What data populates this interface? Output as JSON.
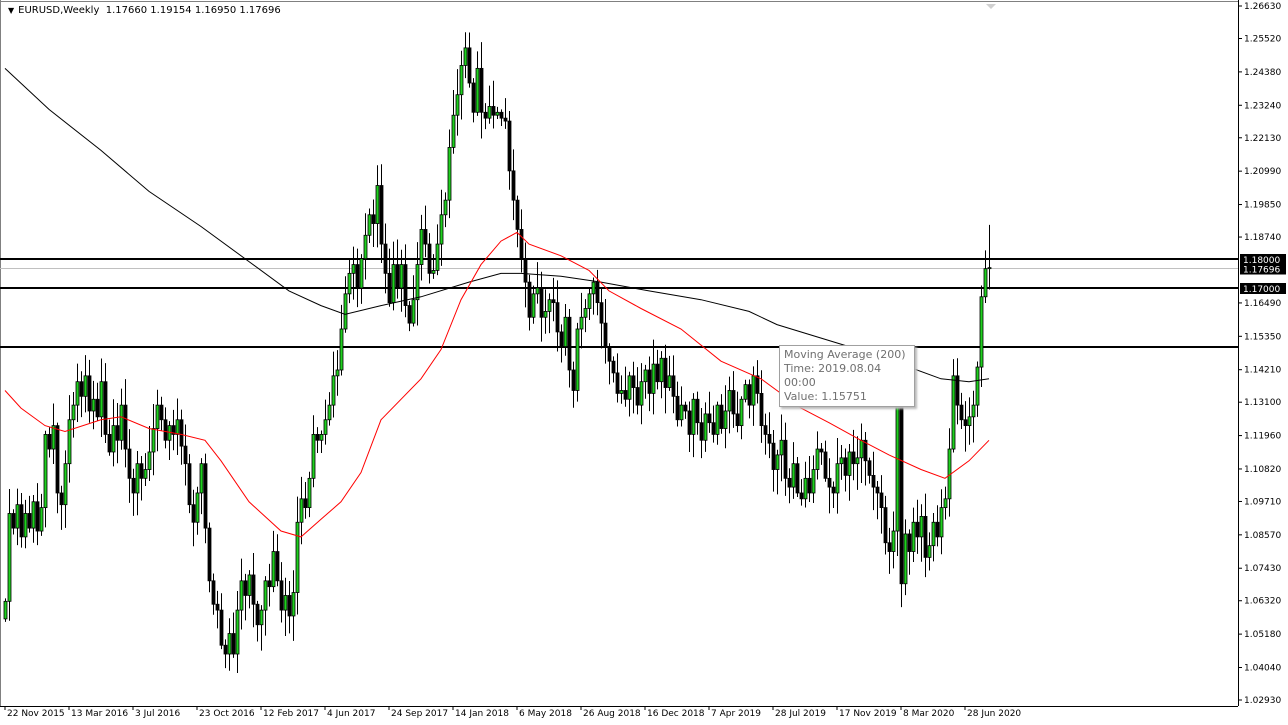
{
  "header": {
    "symbol": "EURUSD,Weekly",
    "open": "1.17660",
    "high": "1.19154",
    "low": "1.16950",
    "close": "1.17696"
  },
  "tooltip": {
    "title": "Moving Average (200)",
    "time": "Time: 2019.08.04 00:00",
    "value": "Value: 1.15751"
  },
  "colors": {
    "up_body": "#1fd01f",
    "down_body": "#000000",
    "ma200": "#000000",
    "ma_fast": "#ff0000",
    "level_line": "#000000",
    "bid_line": "#c0c0c0"
  },
  "chart_data": {
    "type": "candlestick",
    "title": "",
    "ylim": [
      1.0293,
      1.2663
    ],
    "y_ticks": [
      "1.26630",
      "1.25520",
      "1.24380",
      "1.23240",
      "1.22130",
      "1.20990",
      "1.19850",
      "1.18740",
      "1.16490",
      "1.15350",
      "1.14210",
      "1.13100",
      "1.11960",
      "1.10820",
      "1.09710",
      "1.08570",
      "1.07430",
      "1.06320",
      "1.05180",
      "1.04040",
      "1.02930"
    ],
    "x_ticks": [
      "22 Nov 2015",
      "13 Mar 2016",
      "3 Jul 2016",
      "23 Oct 2016",
      "12 Feb 2017",
      "4 Jun 2017",
      "24 Sep 2017",
      "14 Jan 2018",
      "6 May 2018",
      "26 Aug 2018",
      "16 Dec 2018",
      "7 Apr 2019",
      "28 Jul 2019",
      "17 Nov 2019",
      "8 Mar 2020",
      "28 Jun 2020"
    ],
    "horizontal_levels": [
      {
        "price": 1.18,
        "label": "1.18000"
      },
      {
        "price": 1.17,
        "label": "1.17000"
      },
      {
        "price": 1.15
      }
    ],
    "bid": {
      "price": 1.17696,
      "label": "1.17696"
    },
    "last_candle": {
      "open": 1.1766,
      "high": 1.19154,
      "low": 1.1695,
      "close": 1.17696
    },
    "closes": [
      1.063,
      1.093,
      1.088,
      1.096,
      1.085,
      1.093,
      1.088,
      1.097,
      1.087,
      1.095,
      1.12,
      1.115,
      1.123,
      1.1,
      1.096,
      1.11,
      1.125,
      1.13,
      1.138,
      1.133,
      1.14,
      1.128,
      1.132,
      1.126,
      1.138,
      1.12,
      1.114,
      1.123,
      1.118,
      1.13,
      1.115,
      1.105,
      1.1,
      1.11,
      1.105,
      1.108,
      1.114,
      1.122,
      1.13,
      1.125,
      1.118,
      1.123,
      1.12,
      1.125,
      1.116,
      1.11,
      1.096,
      1.09,
      1.1,
      1.11,
      1.088,
      1.07,
      1.062,
      1.06,
      1.048,
      1.045,
      1.052,
      1.045,
      1.06,
      1.07,
      1.065,
      1.072,
      1.062,
      1.055,
      1.06,
      1.07,
      1.068,
      1.08,
      1.07,
      1.06,
      1.065,
      1.058,
      1.066,
      1.09,
      1.098,
      1.095,
      1.105,
      1.12,
      1.118,
      1.12,
      1.125,
      1.13,
      1.14,
      1.142,
      1.156,
      1.168,
      1.175,
      1.178,
      1.17,
      1.18,
      1.188,
      1.195,
      1.192,
      1.205,
      1.185,
      1.175,
      1.165,
      1.178,
      1.17,
      1.178,
      1.164,
      1.158,
      1.166,
      1.178,
      1.19,
      1.185,
      1.175,
      1.176,
      1.185,
      1.195,
      1.2,
      1.218,
      1.229,
      1.236,
      1.246,
      1.252,
      1.24,
      1.23,
      1.245,
      1.23,
      1.228,
      1.232,
      1.229,
      1.23,
      1.228,
      1.227,
      1.21,
      1.2,
      1.19,
      1.18,
      1.172,
      1.16,
      1.168,
      1.17,
      1.16,
      1.162,
      1.166,
      1.165,
      1.155,
      1.15,
      1.16,
      1.142,
      1.135,
      1.156,
      1.16,
      1.163,
      1.168,
      1.172,
      1.165,
      1.158,
      1.15,
      1.145,
      1.141,
      1.134,
      1.135,
      1.132,
      1.14,
      1.136,
      1.13,
      1.138,
      1.142,
      1.134,
      1.144,
      1.138,
      1.146,
      1.136,
      1.14,
      1.133,
      1.125,
      1.13,
      1.128,
      1.12,
      1.132,
      1.124,
      1.118,
      1.127,
      1.124,
      1.12,
      1.13,
      1.122,
      1.128,
      1.135,
      1.127,
      1.123,
      1.132,
      1.137,
      1.13,
      1.14,
      1.134,
      1.123,
      1.12,
      1.117,
      1.108,
      1.113,
      1.118,
      1.105,
      1.102,
      1.11,
      1.1,
      1.098,
      1.105,
      1.1,
      1.108,
      1.115,
      1.114,
      1.105,
      1.102,
      1.1,
      1.11,
      1.112,
      1.106,
      1.114,
      1.11,
      1.112,
      1.118,
      1.111,
      1.106,
      1.102,
      1.1,
      1.095,
      1.083,
      1.08,
      1.087,
      1.135,
      1.069,
      1.086,
      1.08,
      1.09,
      1.085,
      1.092,
      1.078,
      1.082,
      1.09,
      1.085,
      1.095,
      1.098,
      1.115,
      1.14,
      1.13,
      1.125,
      1.123,
      1.126,
      1.13,
      1.143,
      1.167,
      1.1766,
      1.17696
    ],
    "series": [
      {
        "name": "Moving Average (200)",
        "points": [
          [
            0,
            1.245
          ],
          [
            11,
            1.231
          ],
          [
            24,
            1.217
          ],
          [
            36,
            1.203
          ],
          [
            49,
            1.191
          ],
          [
            61,
            1.179
          ],
          [
            71,
            1.169
          ],
          [
            79,
            1.164
          ],
          [
            85,
            1.161
          ],
          [
            94,
            1.164
          ],
          [
            104,
            1.167
          ],
          [
            116,
            1.172
          ],
          [
            124,
            1.175
          ],
          [
            129,
            1.175
          ],
          [
            139,
            1.174
          ],
          [
            149,
            1.172
          ],
          [
            161,
            1.169
          ],
          [
            174,
            1.166
          ],
          [
            186,
            1.162
          ],
          [
            193,
            1.1575
          ],
          [
            211,
            1.15
          ],
          [
            224,
            1.144
          ],
          [
            234,
            1.139
          ],
          [
            241,
            1.138
          ],
          [
            246,
            1.139
          ]
        ]
      },
      {
        "points": [
          [
            0,
            1.135
          ],
          [
            4,
            1.129
          ],
          [
            10,
            1.123
          ],
          [
            15,
            1.121
          ],
          [
            24,
            1.125
          ],
          [
            29,
            1.126
          ],
          [
            36,
            1.122
          ],
          [
            44,
            1.12
          ],
          [
            50,
            1.118
          ],
          [
            54,
            1.111
          ],
          [
            61,
            1.097
          ],
          [
            69,
            1.087
          ],
          [
            74,
            1.085
          ],
          [
            79,
            1.091
          ],
          [
            84,
            1.097
          ],
          [
            89,
            1.107
          ],
          [
            94,
            1.125
          ],
          [
            104,
            1.139
          ],
          [
            109,
            1.149
          ],
          [
            114,
            1.166
          ],
          [
            119,
            1.178
          ],
          [
            124,
            1.186
          ],
          [
            128,
            1.189
          ],
          [
            131,
            1.185
          ],
          [
            139,
            1.181
          ],
          [
            146,
            1.176
          ],
          [
            151,
            1.169
          ],
          [
            159,
            1.163
          ],
          [
            169,
            1.156
          ],
          [
            179,
            1.145
          ],
          [
            189,
            1.139
          ],
          [
            199,
            1.129
          ],
          [
            206,
            1.124
          ],
          [
            214,
            1.118
          ],
          [
            221,
            1.113
          ],
          [
            229,
            1.108
          ],
          [
            235,
            1.105
          ],
          [
            241,
            1.111
          ],
          [
            246,
            1.118
          ]
        ]
      }
    ]
  }
}
